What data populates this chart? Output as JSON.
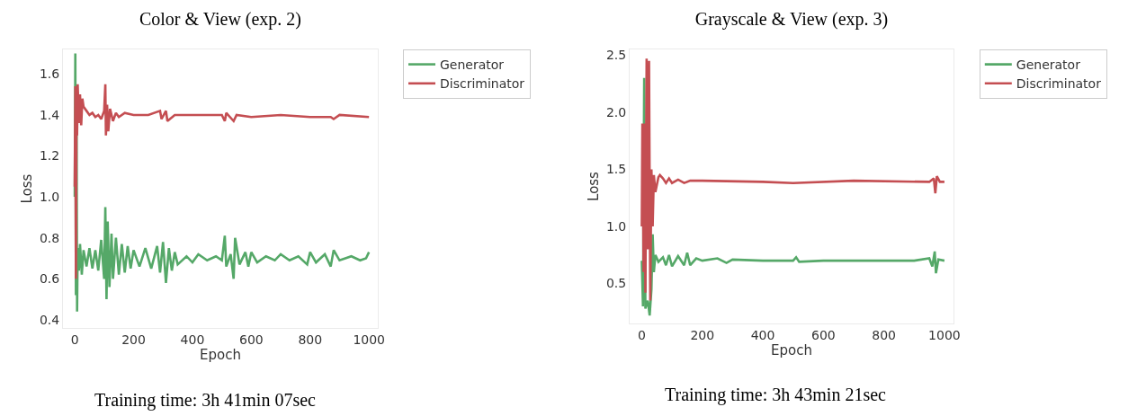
{
  "chart_data": [
    {
      "type": "line",
      "title": "Color & View (exp. 2)",
      "xlabel": "Epoch",
      "ylabel": "Loss",
      "annotations": [
        "Training time: 3h 41min 07sec"
      ],
      "xlim": [
        -40,
        1030
      ],
      "ylim": [
        0.36,
        1.72
      ],
      "xticks": [
        0,
        200,
        400,
        600,
        800,
        1000
      ],
      "yticks": [
        {
          "value": 0.4,
          "label": "0.4"
        },
        {
          "value": 0.6,
          "label": "0.6"
        },
        {
          "value": 0.8,
          "label": "0.8"
        },
        {
          "value": 1.0,
          "label": "1.0"
        },
        {
          "value": 1.2,
          "label": "1.2"
        },
        {
          "value": 1.4,
          "label": "1.4"
        },
        {
          "value": 1.6,
          "label": "1.6"
        }
      ],
      "grid": false,
      "legend": "top right",
      "line_style": "solid",
      "marker": "none",
      "series": [
        {
          "name": "Generator",
          "color": "#55a868",
          "x": [
            0,
            2,
            4,
            6,
            8,
            10,
            14,
            18,
            24,
            30,
            40,
            50,
            60,
            70,
            80,
            90,
            100,
            104,
            108,
            112,
            118,
            125,
            130,
            140,
            150,
            160,
            170,
            180,
            190,
            200,
            220,
            240,
            260,
            280,
            290,
            300,
            310,
            320,
            330,
            340,
            350,
            380,
            400,
            420,
            450,
            480,
            500,
            510,
            515,
            530,
            540,
            545,
            560,
            580,
            590,
            600,
            620,
            650,
            680,
            700,
            730,
            760,
            790,
            800,
            820,
            850,
            870,
            880,
            900,
            940,
            970,
            990,
            1000
          ],
          "values": [
            1.0,
            1.7,
            0.52,
            1.5,
            0.44,
            0.75,
            0.64,
            0.77,
            0.62,
            0.74,
            0.66,
            0.75,
            0.65,
            0.74,
            0.64,
            0.79,
            0.6,
            0.95,
            0.5,
            0.88,
            0.56,
            0.82,
            0.6,
            0.8,
            0.62,
            0.77,
            0.63,
            0.76,
            0.65,
            0.74,
            0.66,
            0.75,
            0.65,
            0.76,
            0.63,
            0.78,
            0.58,
            0.75,
            0.64,
            0.73,
            0.67,
            0.71,
            0.68,
            0.72,
            0.69,
            0.71,
            0.69,
            0.81,
            0.66,
            0.72,
            0.6,
            0.8,
            0.67,
            0.73,
            0.66,
            0.73,
            0.68,
            0.71,
            0.69,
            0.72,
            0.69,
            0.71,
            0.67,
            0.73,
            0.68,
            0.72,
            0.66,
            0.74,
            0.69,
            0.71,
            0.69,
            0.7,
            0.73
          ]
        },
        {
          "name": "Discriminator",
          "color": "#c44e52",
          "x": [
            0,
            2,
            4,
            6,
            8,
            10,
            14,
            18,
            22,
            26,
            30,
            40,
            50,
            60,
            70,
            80,
            90,
            100,
            104,
            106,
            110,
            114,
            120,
            130,
            140,
            150,
            170,
            200,
            250,
            290,
            295,
            310,
            315,
            340,
            400,
            500,
            510,
            515,
            540,
            550,
            600,
            700,
            800,
            870,
            880,
            900,
            1000
          ],
          "values": [
            1.05,
            1.54,
            0.6,
            1.48,
            1.3,
            1.55,
            1.36,
            1.5,
            1.35,
            1.48,
            1.44,
            1.42,
            1.4,
            1.41,
            1.39,
            1.4,
            1.38,
            1.42,
            1.55,
            1.3,
            1.45,
            1.32,
            1.43,
            1.37,
            1.41,
            1.39,
            1.41,
            1.4,
            1.4,
            1.42,
            1.38,
            1.42,
            1.37,
            1.4,
            1.4,
            1.4,
            1.37,
            1.41,
            1.37,
            1.4,
            1.39,
            1.4,
            1.39,
            1.39,
            1.38,
            1.4,
            1.39
          ]
        }
      ]
    },
    {
      "type": "line",
      "title": "Grayscale & View (exp. 3)",
      "xlabel": "Epoch",
      "ylabel": "Loss",
      "annotations": [
        "Training time: 3h 43min 21sec"
      ],
      "xlim": [
        -40,
        1030
      ],
      "ylim": [
        0.15,
        2.55
      ],
      "xticks": [
        0,
        200,
        400,
        600,
        800,
        1000
      ],
      "yticks": [
        {
          "value": 0.5,
          "label": "0.5"
        },
        {
          "value": 1.0,
          "label": "1.0"
        },
        {
          "value": 1.5,
          "label": "1.5"
        },
        {
          "value": 2.0,
          "label": "2.0"
        },
        {
          "value": 2.5,
          "label": "2.5"
        }
      ],
      "grid": false,
      "legend": "top right",
      "line_style": "solid",
      "marker": "none",
      "series": [
        {
          "name": "Generator",
          "color": "#55a868",
          "x": [
            0,
            4,
            8,
            12,
            20,
            26,
            32,
            36,
            40,
            45,
            55,
            70,
            80,
            90,
            100,
            120,
            140,
            150,
            160,
            180,
            200,
            250,
            280,
            300,
            400,
            500,
            510,
            520,
            600,
            700,
            800,
            900,
            950,
            960,
            968,
            972,
            980,
            1000
          ],
          "values": [
            0.7,
            0.3,
            2.3,
            0.28,
            0.35,
            0.22,
            0.45,
            0.93,
            0.6,
            0.75,
            0.69,
            0.73,
            0.66,
            0.75,
            0.65,
            0.74,
            0.66,
            0.77,
            0.66,
            0.72,
            0.7,
            0.72,
            0.68,
            0.71,
            0.7,
            0.7,
            0.73,
            0.69,
            0.7,
            0.7,
            0.7,
            0.7,
            0.72,
            0.65,
            0.78,
            0.59,
            0.71,
            0.7
          ]
        },
        {
          "name": "Discriminator",
          "color": "#c44e52",
          "x": [
            0,
            2,
            6,
            8,
            12,
            16,
            20,
            24,
            28,
            32,
            36,
            40,
            45,
            55,
            60,
            70,
            80,
            90,
            100,
            120,
            140,
            160,
            200,
            400,
            500,
            700,
            950,
            965,
            970,
            975,
            985,
            1000
          ],
          "values": [
            1.0,
            1.9,
            0.6,
            1.9,
            0.42,
            2.47,
            0.8,
            2.45,
            0.35,
            1.5,
            1.0,
            1.45,
            1.3,
            1.43,
            1.45,
            1.42,
            1.38,
            1.42,
            1.38,
            1.41,
            1.38,
            1.4,
            1.4,
            1.39,
            1.38,
            1.4,
            1.39,
            1.42,
            1.29,
            1.44,
            1.39,
            1.39
          ]
        }
      ]
    }
  ]
}
